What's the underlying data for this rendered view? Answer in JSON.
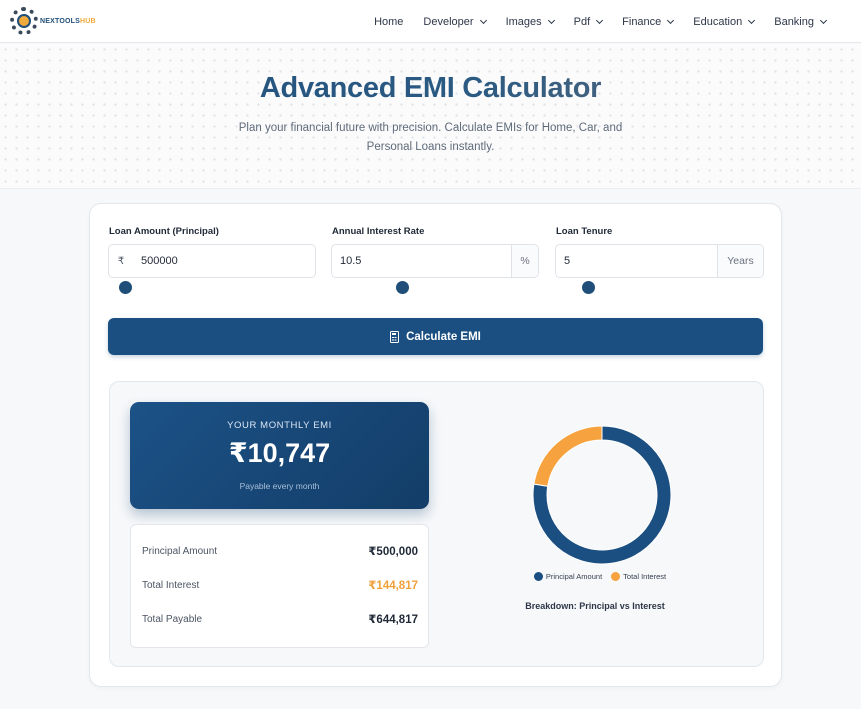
{
  "nav": {
    "logo_text_a": "NEXTOOLS",
    "logo_text_b": "HUB",
    "items": [
      {
        "label": "Home",
        "dropdown": false
      },
      {
        "label": "Developer",
        "dropdown": true
      },
      {
        "label": "Images",
        "dropdown": true
      },
      {
        "label": "Pdf",
        "dropdown": true
      },
      {
        "label": "Finance",
        "dropdown": true
      },
      {
        "label": "Education",
        "dropdown": true
      },
      {
        "label": "Banking",
        "dropdown": true
      }
    ]
  },
  "hero": {
    "title": "Advanced EMI Calculator",
    "subtitle": "Plan your financial future with precision. Calculate EMIs for Home, Car, and Personal Loans instantly."
  },
  "form": {
    "loan_amount": {
      "label": "Loan Amount (Principal)",
      "prefix": "₹",
      "value": "500000"
    },
    "interest_rate": {
      "label": "Annual Interest Rate",
      "value": "10.5",
      "suffix": "%"
    },
    "tenure": {
      "label": "Loan Tenure",
      "value": "5",
      "suffix": "Years"
    },
    "button_label": "Calculate EMI"
  },
  "results": {
    "emi_label": "YOUR MONTHLY EMI",
    "emi_value": "₹10,747",
    "emi_note": "Payable every month",
    "principal_label": "Principal Amount",
    "principal_value": "₹500,000",
    "interest_label": "Total Interest",
    "interest_value": "₹144,817",
    "payable_label": "Total Payable",
    "payable_value": "₹644,817"
  },
  "colors": {
    "primary": "#1b4f81",
    "accent": "#f0a03b"
  },
  "chart_data": {
    "type": "pie",
    "title": "Breakdown: Principal vs Interest",
    "categories": [
      "Principal Amount",
      "Total Interest"
    ],
    "values": [
      500000,
      144817
    ],
    "colors": [
      "#1b4f81",
      "#f5a23f"
    ],
    "donut": true,
    "legend": "bottom"
  }
}
